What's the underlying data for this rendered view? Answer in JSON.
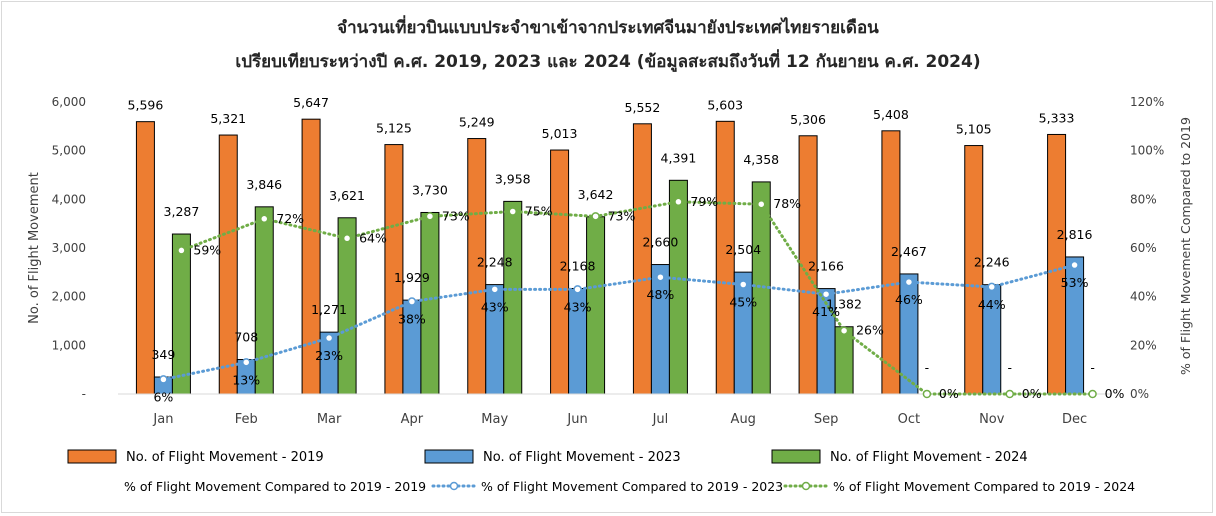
{
  "chart_data": {
    "type": "bar",
    "title": "จำนวนเที่ยวบินแบบประจำขาเข้าจากประเทศจีนมายังประเทศไทยรายเดือน",
    "subtitle": "เปรียบเทียบระหว่างปี ค.ศ. 2019, 2023 และ 2024 (ข้อมูลสะสมถึงวันที่ 12 กันยายน ค.ศ. 2024)",
    "ylabel": "No. of Flight Movement",
    "y2label": "% of Flight Movement Compared to 2019",
    "ylim": [
      0,
      6000
    ],
    "y2lim": [
      0,
      120
    ],
    "yticks": [
      "-",
      "1,000",
      "2,000",
      "3,000",
      "4,000",
      "5,000",
      "6,000"
    ],
    "y2ticks": [
      "0%",
      "20%",
      "40%",
      "60%",
      "80%",
      "100%",
      "120%"
    ],
    "categories": [
      "Jan",
      "Feb",
      "Mar",
      "Apr",
      "May",
      "Jun",
      "Jul",
      "Aug",
      "Sep",
      "Oct",
      "Nov",
      "Dec"
    ],
    "series": [
      {
        "name": "No. of Flight Movement - 2019",
        "color": "#ED7D31",
        "values": [
          5596,
          5321,
          5647,
          5125,
          5249,
          5013,
          5552,
          5603,
          5306,
          5408,
          5105,
          5333
        ],
        "labels": [
          "5,596",
          "5,321",
          "5,647",
          "5,125",
          "5,249",
          "5,013",
          "5,552",
          "5,603",
          "5,306",
          "5,408",
          "5,105",
          "5,333"
        ]
      },
      {
        "name": "No. of Flight Movement - 2023",
        "color": "#5B9BD5",
        "values": [
          349,
          708,
          1271,
          1929,
          2248,
          2168,
          2660,
          2504,
          2166,
          2467,
          2246,
          2816
        ],
        "labels": [
          "349",
          "708",
          "1,271",
          "1,929",
          "2,248",
          "2,168",
          "2,660",
          "2,504",
          "2,166",
          "2,467",
          "2,246",
          "2,816"
        ]
      },
      {
        "name": "No. of Flight Movement - 2024",
        "color": "#70AD47",
        "values": [
          3287,
          3846,
          3621,
          3730,
          3958,
          3642,
          4391,
          4358,
          1382,
          0,
          0,
          0
        ],
        "labels": [
          "3,287",
          "3,846",
          "3,621",
          "3,730",
          "3,958",
          "3,642",
          "4,391",
          "4,358",
          "1,382",
          "-",
          "-",
          "-"
        ]
      }
    ],
    "pct_series": [
      {
        "name": "% of Flight Movement Compared to 2019 - 2019",
        "color": "#ED7D31"
      },
      {
        "name": "% of Flight Movement Compared to 2019 - 2023",
        "color": "#5B9BD5",
        "values": [
          6,
          13,
          23,
          38,
          43,
          43,
          48,
          45,
          41,
          46,
          44,
          53
        ],
        "labels": [
          "6%",
          "13%",
          "23%",
          "38%",
          "43%",
          "43%",
          "48%",
          "45%",
          "41%",
          "46%",
          "44%",
          "53%"
        ]
      },
      {
        "name": "% of Flight Movement Compared to 2019 - 2024",
        "color": "#70AD47",
        "values": [
          59,
          72,
          64,
          73,
          75,
          73,
          79,
          78,
          26,
          0,
          0,
          0
        ],
        "labels": [
          "59%",
          "72%",
          "64%",
          "73%",
          "75%",
          "73%",
          "79%",
          "78%",
          "26%",
          "0%",
          "0%",
          "0%"
        ]
      }
    ],
    "grid": false,
    "legend": "bottom"
  }
}
